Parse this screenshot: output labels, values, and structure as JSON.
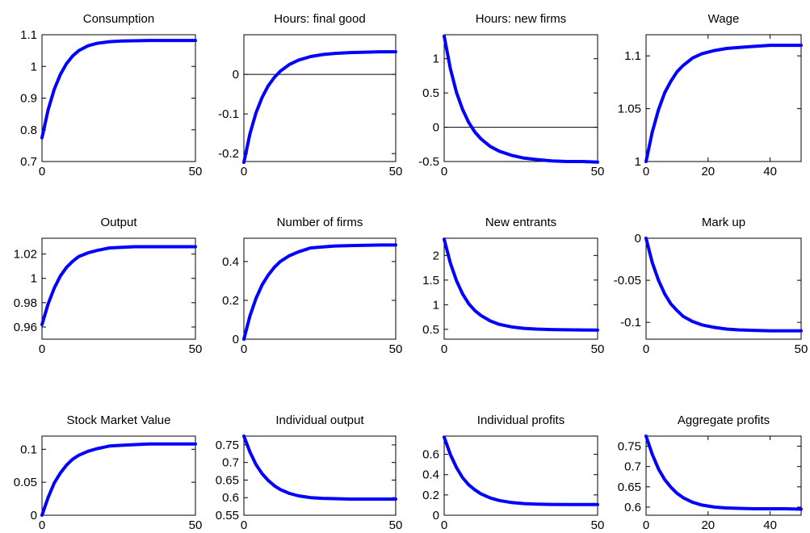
{
  "colors": {
    "series": "#0000ff",
    "axes": "#000000",
    "background": "#ffffff"
  },
  "chart_data": [
    {
      "type": "line",
      "title": "Consumption",
      "xlim": [
        0,
        50
      ],
      "ylim": [
        0.7,
        1.1
      ],
      "xticks": [
        0,
        50
      ],
      "xtick_labels": [
        "0",
        "50"
      ],
      "yticks": [
        0.7,
        0.8,
        0.9,
        1.0,
        1.1
      ],
      "ytick_labels": [
        "0.7",
        "0.8",
        "0.9",
        "1",
        "1.1"
      ],
      "series": [
        {
          "x": [
            0,
            2,
            4,
            6,
            8,
            10,
            12,
            15,
            18,
            22,
            26,
            30,
            35,
            40,
            45,
            50
          ],
          "y": [
            0.775,
            0.863,
            0.928,
            0.975,
            1.009,
            1.033,
            1.05,
            1.065,
            1.073,
            1.078,
            1.08,
            1.081,
            1.082,
            1.082,
            1.082,
            1.082
          ]
        }
      ]
    },
    {
      "type": "line",
      "title": "Hours: final good",
      "xlim": [
        0,
        50
      ],
      "ylim": [
        -0.22,
        0.1
      ],
      "xticks": [
        0,
        50
      ],
      "xtick_labels": [
        "0",
        "50"
      ],
      "yticks": [
        -0.2,
        -0.1,
        0
      ],
      "ytick_labels": [
        "-0.2",
        "-0.1",
        "0"
      ],
      "zero_line": true,
      "series": [
        {
          "x": [
            0,
            2,
            4,
            6,
            8,
            10,
            12,
            15,
            18,
            22,
            26,
            30,
            35,
            40,
            45,
            50
          ],
          "y": [
            -0.222,
            -0.15,
            -0.097,
            -0.058,
            -0.029,
            -0.008,
            0.008,
            0.025,
            0.036,
            0.045,
            0.05,
            0.053,
            0.055,
            0.056,
            0.057,
            0.057
          ]
        }
      ]
    },
    {
      "type": "line",
      "title": "Hours: new firms",
      "xlim": [
        0,
        50
      ],
      "ylim": [
        -0.5,
        1.35
      ],
      "xticks": [
        0,
        50
      ],
      "xtick_labels": [
        "0",
        "50"
      ],
      "yticks": [
        -0.5,
        0,
        0.5,
        1
      ],
      "ytick_labels": [
        "-0.5",
        "0",
        "0.5",
        "1"
      ],
      "zero_line": true,
      "series": [
        {
          "x": [
            0,
            2,
            4,
            6,
            8,
            10,
            12,
            15,
            18,
            22,
            26,
            30,
            35,
            40,
            45,
            50
          ],
          "y": [
            1.33,
            0.86,
            0.51,
            0.26,
            0.07,
            -0.07,
            -0.17,
            -0.28,
            -0.35,
            -0.41,
            -0.45,
            -0.47,
            -0.49,
            -0.5,
            -0.5,
            -0.51
          ]
        }
      ]
    },
    {
      "type": "line",
      "title": "Wage",
      "xlim": [
        0,
        50
      ],
      "ylim": [
        1.0,
        1.12
      ],
      "xticks": [
        0,
        20,
        40
      ],
      "xtick_labels": [
        "0",
        "20",
        "40"
      ],
      "yticks": [
        1.0,
        1.05,
        1.1
      ],
      "ytick_labels": [
        "1",
        "1.05",
        "1.1"
      ],
      "series": [
        {
          "x": [
            0,
            2,
            4,
            6,
            8,
            10,
            12,
            15,
            18,
            22,
            26,
            30,
            35,
            40,
            45,
            50
          ],
          "y": [
            1.0,
            1.028,
            1.049,
            1.065,
            1.076,
            1.085,
            1.091,
            1.098,
            1.102,
            1.105,
            1.107,
            1.108,
            1.109,
            1.11,
            1.11,
            1.11
          ]
        }
      ]
    },
    {
      "type": "line",
      "title": "Output",
      "xlim": [
        0,
        50
      ],
      "ylim": [
        0.95,
        1.033
      ],
      "xticks": [
        0,
        50
      ],
      "xtick_labels": [
        "0",
        "50"
      ],
      "yticks": [
        0.96,
        0.98,
        1.0,
        1.02
      ],
      "ytick_labels": [
        "0.96",
        "0.98",
        "1",
        "1.02"
      ],
      "series": [
        {
          "x": [
            0,
            2,
            4,
            6,
            8,
            10,
            12,
            15,
            18,
            22,
            26,
            30,
            35,
            40,
            45,
            50
          ],
          "y": [
            0.962,
            0.979,
            0.992,
            1.002,
            1.009,
            1.014,
            1.018,
            1.021,
            1.023,
            1.025,
            1.0255,
            1.026,
            1.026,
            1.026,
            1.026,
            1.026
          ]
        }
      ]
    },
    {
      "type": "line",
      "title": "Number of firms",
      "xlim": [
        0,
        50
      ],
      "ylim": [
        0,
        0.52
      ],
      "xticks": [
        0,
        50
      ],
      "xtick_labels": [
        "0",
        "50"
      ],
      "yticks": [
        0,
        0.2,
        0.4
      ],
      "ytick_labels": [
        "0",
        "0.2",
        "0.4"
      ],
      "series": [
        {
          "x": [
            0,
            2,
            4,
            6,
            8,
            10,
            12,
            15,
            18,
            22,
            26,
            30,
            35,
            40,
            45,
            50
          ],
          "y": [
            0.0,
            0.12,
            0.21,
            0.28,
            0.33,
            0.37,
            0.4,
            0.43,
            0.45,
            0.47,
            0.475,
            0.48,
            0.482,
            0.484,
            0.485,
            0.485
          ]
        }
      ]
    },
    {
      "type": "line",
      "title": "New entrants",
      "xlim": [
        0,
        50
      ],
      "ylim": [
        0.3,
        2.35
      ],
      "xticks": [
        0,
        50
      ],
      "xtick_labels": [
        "0",
        "50"
      ],
      "yticks": [
        0.5,
        1,
        1.5,
        2
      ],
      "ytick_labels": [
        "0.5",
        "1",
        "1.5",
        "2"
      ],
      "series": [
        {
          "x": [
            0,
            2,
            4,
            6,
            8,
            10,
            12,
            15,
            18,
            22,
            26,
            30,
            35,
            40,
            45,
            50
          ],
          "y": [
            2.33,
            1.85,
            1.49,
            1.22,
            1.02,
            0.88,
            0.78,
            0.67,
            0.6,
            0.55,
            0.52,
            0.505,
            0.495,
            0.49,
            0.487,
            0.485
          ]
        }
      ]
    },
    {
      "type": "line",
      "title": "Mark up",
      "xlim": [
        0,
        50
      ],
      "ylim": [
        -0.12,
        0.0
      ],
      "xticks": [
        0,
        50
      ],
      "xtick_labels": [
        "0",
        "50"
      ],
      "yticks": [
        -0.1,
        -0.05,
        0
      ],
      "ytick_labels": [
        "-0.1",
        "-0.05",
        "0"
      ],
      "series": [
        {
          "x": [
            0,
            2,
            4,
            6,
            8,
            10,
            12,
            15,
            18,
            22,
            26,
            30,
            35,
            40,
            45,
            50
          ],
          "y": [
            0.0,
            -0.029,
            -0.05,
            -0.066,
            -0.078,
            -0.086,
            -0.093,
            -0.099,
            -0.103,
            -0.106,
            -0.108,
            -0.109,
            -0.1095,
            -0.11,
            -0.11,
            -0.11
          ]
        }
      ]
    },
    {
      "type": "line",
      "title": "Stock Market Value",
      "xlim": [
        0,
        50
      ],
      "ylim": [
        0,
        0.12
      ],
      "xticks": [
        0,
        50
      ],
      "xtick_labels": [
        "0",
        "50"
      ],
      "yticks": [
        0,
        0.05,
        0.1
      ],
      "ytick_labels": [
        "0",
        "0.05",
        "0.1"
      ],
      "series": [
        {
          "x": [
            0,
            2,
            4,
            6,
            8,
            10,
            12,
            15,
            18,
            22,
            26,
            30,
            35,
            40,
            45,
            50
          ],
          "y": [
            0.0,
            0.027,
            0.049,
            0.064,
            0.076,
            0.085,
            0.091,
            0.097,
            0.101,
            0.105,
            0.106,
            0.107,
            0.108,
            0.108,
            0.108,
            0.108
          ]
        }
      ]
    },
    {
      "type": "line",
      "title": "Individual output",
      "xlim": [
        0,
        50
      ],
      "ylim": [
        0.55,
        0.775
      ],
      "xticks": [
        0,
        50
      ],
      "xtick_labels": [
        "0",
        "50"
      ],
      "yticks": [
        0.55,
        0.6,
        0.65,
        0.7,
        0.75
      ],
      "ytick_labels": [
        "0.55",
        "0.6",
        "0.65",
        "0.7",
        "0.75"
      ],
      "series": [
        {
          "x": [
            0,
            2,
            4,
            6,
            8,
            10,
            12,
            15,
            18,
            22,
            26,
            30,
            35,
            40,
            45,
            50
          ],
          "y": [
            0.775,
            0.73,
            0.694,
            0.668,
            0.649,
            0.634,
            0.623,
            0.612,
            0.605,
            0.6,
            0.598,
            0.597,
            0.596,
            0.596,
            0.596,
            0.596
          ]
        }
      ]
    },
    {
      "type": "line",
      "title": "Individual profits",
      "xlim": [
        0,
        50
      ],
      "ylim": [
        0,
        0.78
      ],
      "xticks": [
        0,
        50
      ],
      "xtick_labels": [
        "0",
        "50"
      ],
      "yticks": [
        0,
        0.2,
        0.4,
        0.6
      ],
      "ytick_labels": [
        "0",
        "0.2",
        "0.4",
        "0.6"
      ],
      "series": [
        {
          "x": [
            0,
            2,
            4,
            6,
            8,
            10,
            12,
            15,
            18,
            22,
            26,
            30,
            35,
            40,
            45,
            50
          ],
          "y": [
            0.77,
            0.6,
            0.47,
            0.37,
            0.3,
            0.25,
            0.21,
            0.17,
            0.145,
            0.125,
            0.115,
            0.11,
            0.107,
            0.105,
            0.105,
            0.105
          ]
        }
      ]
    },
    {
      "type": "line",
      "title": "Aggregate profits",
      "xlim": [
        0,
        50
      ],
      "ylim": [
        0.58,
        0.775
      ],
      "xticks": [
        0,
        20,
        40
      ],
      "xtick_labels": [
        "0",
        "20",
        "40"
      ],
      "yticks": [
        0.6,
        0.65,
        0.7,
        0.75
      ],
      "ytick_labels": [
        "0.6",
        "0.65",
        "0.7",
        "0.75"
      ],
      "series": [
        {
          "x": [
            0,
            2,
            4,
            6,
            8,
            10,
            12,
            15,
            18,
            22,
            26,
            30,
            35,
            40,
            45,
            50
          ],
          "y": [
            0.775,
            0.73,
            0.694,
            0.668,
            0.649,
            0.634,
            0.623,
            0.612,
            0.605,
            0.6,
            0.598,
            0.597,
            0.596,
            0.596,
            0.596,
            0.595
          ]
        }
      ]
    }
  ]
}
